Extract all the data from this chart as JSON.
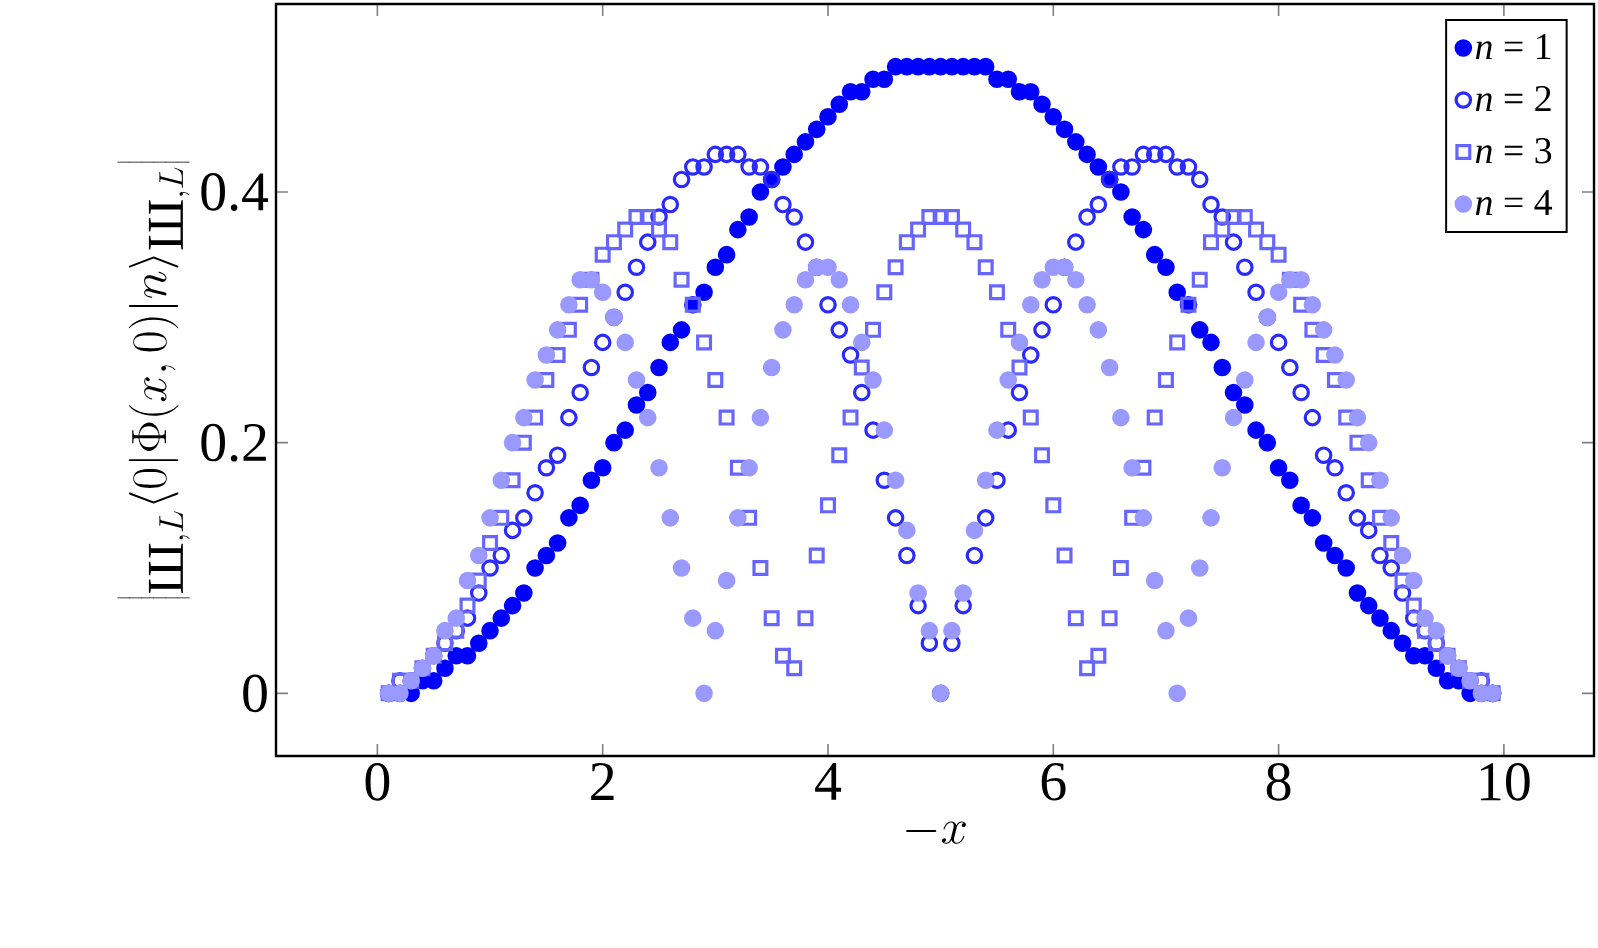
{
  "chart_data": {
    "type": "scatter",
    "xlabel": "-x",
    "ylabel": "\\left|{}_{\\mbox{Ш},L}\\langle 0|\\Phi(x,0)|n\\rangle_{\\mbox{Ш},L}\\right|",
    "xlim": [
      -0.9,
      10.8
    ],
    "ylim": [
      -0.05,
      0.55
    ],
    "xticks": [
      0,
      2,
      4,
      6,
      8,
      10
    ],
    "yticks": [
      0,
      0.2,
      0.4
    ],
    "grid": false,
    "legend": "top right",
    "x": [
      0.1,
      0.2,
      0.3,
      0.4,
      0.5,
      0.6,
      0.7,
      0.8,
      0.9,
      1.0,
      1.1,
      1.2,
      1.3,
      1.4,
      1.5,
      1.6,
      1.7,
      1.8,
      1.9,
      2.0,
      2.1,
      2.2,
      2.3,
      2.4,
      2.5,
      2.6,
      2.7,
      2.8,
      2.9,
      3.0,
      3.1,
      3.2,
      3.3,
      3.4,
      3.5,
      3.6,
      3.7,
      3.8,
      3.9,
      4.0,
      4.1,
      4.2,
      4.3,
      4.4,
      4.5,
      4.6,
      4.7,
      4.8,
      4.9,
      5.0,
      5.1,
      5.2,
      5.3,
      5.4,
      5.5,
      5.6,
      5.7,
      5.8,
      5.9,
      6.0,
      6.1,
      6.2,
      6.3,
      6.4,
      6.5,
      6.6,
      6.7,
      6.8,
      6.9,
      7.0,
      7.1,
      7.2,
      7.3,
      7.4,
      7.5,
      7.6,
      7.7,
      7.8,
      7.9,
      8.0,
      8.1,
      8.2,
      8.3,
      8.4,
      8.5,
      8.6,
      8.7,
      8.8,
      8.9,
      9.0,
      9.1,
      9.2,
      9.3,
      9.4,
      9.5,
      9.6,
      9.7,
      9.8,
      9.9
    ],
    "series": [
      {
        "name": "*n* = 1",
        "color": "#0000ff",
        "marker": "circle",
        "values": [
          0.0,
          0.0,
          0.0,
          0.01,
          0.01,
          0.02,
          0.03,
          0.03,
          0.04,
          0.05,
          0.06,
          0.07,
          0.08,
          0.1,
          0.11,
          0.12,
          0.14,
          0.15,
          0.17,
          0.18,
          0.2,
          0.21,
          0.23,
          0.24,
          0.26,
          0.28,
          0.29,
          0.31,
          0.32,
          0.34,
          0.35,
          0.37,
          0.38,
          0.4,
          0.41,
          0.42,
          0.43,
          0.44,
          0.45,
          0.46,
          0.47,
          0.48,
          0.48,
          0.49,
          0.49,
          0.5,
          0.5,
          0.5,
          0.5,
          0.5,
          0.5,
          0.5,
          0.5,
          0.5,
          0.49,
          0.49,
          0.48,
          0.48,
          0.47,
          0.46,
          0.45,
          0.44,
          0.43,
          0.42,
          0.41,
          0.4,
          0.38,
          0.37,
          0.35,
          0.34,
          0.32,
          0.31,
          0.29,
          0.28,
          0.26,
          0.24,
          0.23,
          0.21,
          0.2,
          0.18,
          0.17,
          0.15,
          0.14,
          0.12,
          0.11,
          0.1,
          0.08,
          0.07,
          0.06,
          0.05,
          0.04,
          0.03,
          0.03,
          0.02,
          0.01,
          0.01,
          0.0,
          0.0,
          0.0
        ]
      },
      {
        "name": "*n* = 2",
        "color": "#2a2aff",
        "marker": "circle",
        "values": [
          0.0,
          0.01,
          0.01,
          0.02,
          0.03,
          0.04,
          0.05,
          0.06,
          0.08,
          0.1,
          0.11,
          0.13,
          0.14,
          0.16,
          0.18,
          0.19,
          0.22,
          0.24,
          0.26,
          0.28,
          0.3,
          0.32,
          0.34,
          0.36,
          0.38,
          0.39,
          0.41,
          0.42,
          0.42,
          0.43,
          0.43,
          0.43,
          0.42,
          0.42,
          0.41,
          0.39,
          0.38,
          0.36,
          0.34,
          0.31,
          0.29,
          0.27,
          0.24,
          0.21,
          0.17,
          0.14,
          0.11,
          0.07,
          0.04,
          0.0,
          0.04,
          0.07,
          0.11,
          0.14,
          0.17,
          0.21,
          0.24,
          0.27,
          0.29,
          0.31,
          0.34,
          0.36,
          0.38,
          0.39,
          0.41,
          0.42,
          0.42,
          0.43,
          0.43,
          0.43,
          0.42,
          0.42,
          0.41,
          0.39,
          0.38,
          0.36,
          0.34,
          0.32,
          0.3,
          0.28,
          0.26,
          0.24,
          0.22,
          0.19,
          0.18,
          0.16,
          0.14,
          0.13,
          0.11,
          0.1,
          0.08,
          0.06,
          0.05,
          0.04,
          0.03,
          0.02,
          0.01,
          0.01,
          0.0
        ]
      },
      {
        "name": "*n* = 3",
        "color": "#6666ff",
        "marker": "square",
        "values": [
          0.0,
          0.01,
          0.01,
          0.02,
          0.03,
          0.04,
          0.05,
          0.07,
          0.09,
          0.12,
          0.14,
          0.17,
          0.2,
          0.22,
          0.25,
          0.27,
          0.29,
          0.31,
          0.33,
          0.35,
          0.36,
          0.37,
          0.38,
          0.38,
          0.37,
          0.36,
          0.33,
          0.31,
          0.28,
          0.25,
          0.22,
          0.18,
          0.14,
          0.1,
          0.06,
          0.03,
          0.02,
          0.06,
          0.11,
          0.15,
          0.19,
          0.22,
          0.26,
          0.29,
          0.32,
          0.34,
          0.36,
          0.37,
          0.38,
          0.38,
          0.38,
          0.37,
          0.36,
          0.34,
          0.32,
          0.29,
          0.26,
          0.22,
          0.19,
          0.15,
          0.11,
          0.06,
          0.02,
          0.03,
          0.06,
          0.1,
          0.14,
          0.18,
          0.22,
          0.25,
          0.28,
          0.31,
          0.33,
          0.36,
          0.37,
          0.38,
          0.38,
          0.37,
          0.36,
          0.35,
          0.33,
          0.31,
          0.29,
          0.27,
          0.25,
          0.22,
          0.2,
          0.17,
          0.14,
          0.12,
          0.09,
          0.07,
          0.05,
          0.04,
          0.03,
          0.02,
          0.01,
          0.01,
          0.0
        ]
      },
      {
        "name": "*n* = 4",
        "color": "#9999ff",
        "marker": "circle",
        "values": [
          0.0,
          0.0,
          0.01,
          0.02,
          0.03,
          0.05,
          0.06,
          0.09,
          0.11,
          0.14,
          0.17,
          0.2,
          0.22,
          0.25,
          0.27,
          0.29,
          0.31,
          0.33,
          0.33,
          0.32,
          0.3,
          0.28,
          0.25,
          0.22,
          0.18,
          0.14,
          0.1,
          0.06,
          0.0,
          0.05,
          0.09,
          0.14,
          0.18,
          0.22,
          0.26,
          0.29,
          0.31,
          0.33,
          0.34,
          0.34,
          0.33,
          0.31,
          0.28,
          0.25,
          0.21,
          0.17,
          0.13,
          0.08,
          0.05,
          0.0,
          0.05,
          0.08,
          0.13,
          0.17,
          0.21,
          0.25,
          0.28,
          0.31,
          0.33,
          0.34,
          0.34,
          0.33,
          0.31,
          0.29,
          0.26,
          0.22,
          0.18,
          0.14,
          0.09,
          0.05,
          0.0,
          0.06,
          0.1,
          0.14,
          0.18,
          0.22,
          0.25,
          0.28,
          0.3,
          0.32,
          0.33,
          0.33,
          0.31,
          0.29,
          0.27,
          0.25,
          0.22,
          0.2,
          0.17,
          0.14,
          0.11,
          0.09,
          0.06,
          0.05,
          0.03,
          0.02,
          0.01,
          0.0,
          0.0
        ]
      }
    ]
  }
}
